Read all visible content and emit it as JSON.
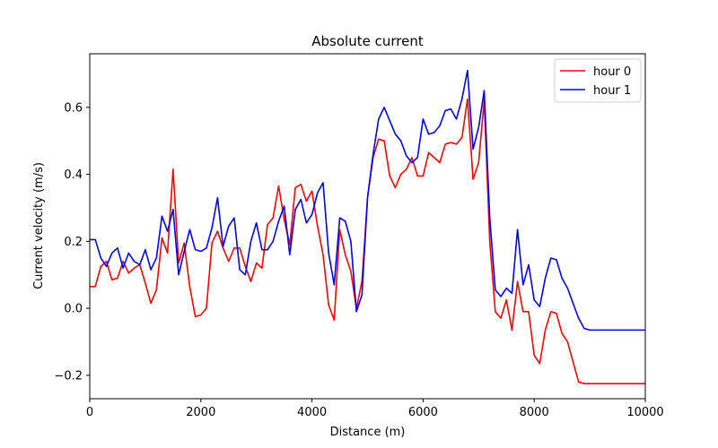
{
  "chart_data": {
    "type": "line",
    "title": "Absolute current",
    "xlabel": "Distance (m)",
    "ylabel": "Current velocity (m/s)",
    "xlim": [
      0,
      10000
    ],
    "ylim": [
      -0.27,
      0.76
    ],
    "xticks": [
      0,
      2000,
      4000,
      6000,
      8000,
      10000
    ],
    "xtick_labels": [
      "0",
      "2000",
      "4000",
      "6000",
      "8000",
      "10000"
    ],
    "yticks": [
      -0.2,
      0.0,
      0.2,
      0.4,
      0.6
    ],
    "ytick_labels": [
      "−0.2",
      "0.0",
      "0.2",
      "0.4",
      "0.6"
    ],
    "grid": false,
    "legend_position": "top-right",
    "series": [
      {
        "name": "hour 0",
        "color": "#ff0000",
        "x": [
          0,
          100,
          200,
          300,
          400,
          500,
          600,
          700,
          800,
          900,
          1000,
          1100,
          1200,
          1300,
          1400,
          1500,
          1600,
          1700,
          1800,
          1900,
          2000,
          2100,
          2200,
          2300,
          2400,
          2500,
          2600,
          2700,
          2800,
          2900,
          3000,
          3100,
          3200,
          3300,
          3400,
          3500,
          3600,
          3700,
          3800,
          3900,
          4000,
          4100,
          4200,
          4300,
          4400,
          4500,
          4600,
          4700,
          4800,
          4900,
          5000,
          5100,
          5200,
          5300,
          5400,
          5500,
          5600,
          5700,
          5800,
          5900,
          6000,
          6100,
          6200,
          6300,
          6400,
          6500,
          6600,
          6700,
          6800,
          6900,
          7000,
          7100,
          7200,
          7300,
          7400,
          7500,
          7600,
          7700,
          7800,
          7900,
          8000,
          8100,
          8200,
          8300,
          8400,
          8500,
          8600,
          8700,
          8800,
          8900,
          9000,
          9100,
          9200,
          9300,
          9400,
          9500,
          9600,
          9700,
          9800,
          9900,
          10000
        ],
        "values": [
          0.065,
          0.065,
          0.125,
          0.14,
          0.085,
          0.09,
          0.14,
          0.105,
          0.12,
          0.13,
          0.075,
          0.015,
          0.055,
          0.21,
          0.165,
          0.415,
          0.135,
          0.195,
          0.065,
          -0.025,
          -0.02,
          0.0,
          0.195,
          0.23,
          0.18,
          0.14,
          0.18,
          0.18,
          0.125,
          0.08,
          0.135,
          0.12,
          0.25,
          0.27,
          0.365,
          0.265,
          0.19,
          0.36,
          0.37,
          0.32,
          0.35,
          0.245,
          0.16,
          0.01,
          -0.035,
          0.235,
          0.16,
          0.11,
          0.0,
          0.08,
          0.33,
          0.45,
          0.505,
          0.5,
          0.395,
          0.36,
          0.4,
          0.415,
          0.45,
          0.395,
          0.395,
          0.465,
          0.45,
          0.435,
          0.49,
          0.495,
          0.49,
          0.51,
          0.625,
          0.385,
          0.435,
          0.62,
          0.2,
          -0.01,
          -0.03,
          0.025,
          -0.065,
          0.08,
          -0.01,
          -0.01,
          -0.14,
          -0.165,
          -0.065,
          -0.01,
          -0.015,
          -0.075,
          -0.1,
          -0.16,
          -0.22,
          -0.225,
          -0.225,
          -0.225,
          -0.225,
          -0.225,
          -0.225,
          -0.225,
          -0.225,
          -0.225,
          -0.225,
          -0.225,
          -0.225
        ]
      },
      {
        "name": "hour 1",
        "color": "#0000ff",
        "x": [
          0,
          100,
          200,
          300,
          400,
          500,
          600,
          700,
          800,
          900,
          1000,
          1100,
          1200,
          1300,
          1400,
          1500,
          1600,
          1700,
          1800,
          1900,
          2000,
          2100,
          2200,
          2300,
          2400,
          2500,
          2600,
          2700,
          2800,
          2900,
          3000,
          3100,
          3200,
          3300,
          3400,
          3500,
          3600,
          3700,
          3800,
          3900,
          4000,
          4100,
          4200,
          4300,
          4400,
          4500,
          4600,
          4700,
          4800,
          4900,
          5000,
          5100,
          5200,
          5300,
          5400,
          5500,
          5600,
          5700,
          5800,
          5900,
          6000,
          6100,
          6200,
          6300,
          6400,
          6500,
          6600,
          6700,
          6800,
          6900,
          7000,
          7100,
          7200,
          7300,
          7400,
          7500,
          7600,
          7700,
          7800,
          7900,
          8000,
          8100,
          8200,
          8300,
          8400,
          8500,
          8600,
          8700,
          8800,
          8900,
          9000,
          9100,
          9200,
          9300,
          9400,
          9500,
          9600,
          9700,
          9800,
          9900,
          10000
        ],
        "values": [
          0.205,
          0.205,
          0.15,
          0.125,
          0.165,
          0.18,
          0.12,
          0.165,
          0.14,
          0.13,
          0.175,
          0.115,
          0.15,
          0.275,
          0.23,
          0.295,
          0.1,
          0.17,
          0.235,
          0.175,
          0.17,
          0.18,
          0.24,
          0.33,
          0.185,
          0.245,
          0.27,
          0.115,
          0.1,
          0.2,
          0.255,
          0.175,
          0.175,
          0.2,
          0.26,
          0.305,
          0.16,
          0.295,
          0.325,
          0.255,
          0.28,
          0.345,
          0.375,
          0.165,
          0.07,
          0.27,
          0.26,
          0.2,
          -0.01,
          0.04,
          0.33,
          0.46,
          0.565,
          0.6,
          0.56,
          0.52,
          0.5,
          0.455,
          0.435,
          0.45,
          0.565,
          0.52,
          0.525,
          0.545,
          0.59,
          0.595,
          0.565,
          0.625,
          0.71,
          0.475,
          0.54,
          0.65,
          0.27,
          0.055,
          0.035,
          0.06,
          0.045,
          0.235,
          0.07,
          0.13,
          0.025,
          0.005,
          0.09,
          0.15,
          0.145,
          0.09,
          0.06,
          0.015,
          -0.03,
          -0.06,
          -0.065,
          -0.065,
          -0.065,
          -0.065,
          -0.065,
          -0.065,
          -0.065,
          -0.065,
          -0.065,
          -0.065,
          -0.065
        ]
      }
    ]
  }
}
